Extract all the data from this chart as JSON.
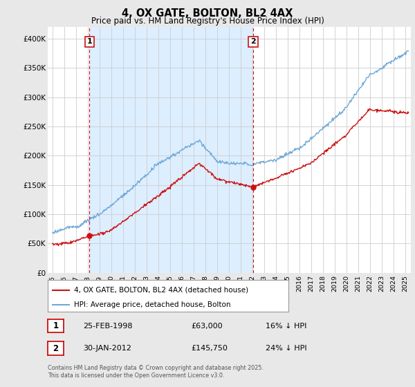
{
  "title": "4, OX GATE, BOLTON, BL2 4AX",
  "subtitle": "Price paid vs. HM Land Registry's House Price Index (HPI)",
  "ylim": [
    0,
    420000
  ],
  "yticks": [
    0,
    50000,
    100000,
    150000,
    200000,
    250000,
    300000,
    350000,
    400000
  ],
  "ytick_labels": [
    "£0",
    "£50K",
    "£100K",
    "£150K",
    "£200K",
    "£250K",
    "£300K",
    "£350K",
    "£400K"
  ],
  "hpi_color": "#6ea8d8",
  "price_color": "#cc1111",
  "vline_color": "#cc1111",
  "annotation_box_color": "#cc1111",
  "background_color": "#e8e8e8",
  "plot_bg_color": "#ffffff",
  "plot_shade_color": "#ddeeff",
  "grid_color": "#cccccc",
  "legend_label_red": "4, OX GATE, BOLTON, BL2 4AX (detached house)",
  "legend_label_blue": "HPI: Average price, detached house, Bolton",
  "annotation1_label": "1",
  "annotation1_date": "25-FEB-1998",
  "annotation1_price": "£63,000",
  "annotation1_hpi": "16% ↓ HPI",
  "annotation2_label": "2",
  "annotation2_date": "30-JAN-2012",
  "annotation2_price": "£145,750",
  "annotation2_hpi": "24% ↓ HPI",
  "footnote": "Contains HM Land Registry data © Crown copyright and database right 2025.\nThis data is licensed under the Open Government Licence v3.0.",
  "sale1_year": 1998.15,
  "sale1_price": 63000,
  "sale2_year": 2012.08,
  "sale2_price": 145750,
  "xlim_left": 1994.6,
  "xlim_right": 2025.5
}
